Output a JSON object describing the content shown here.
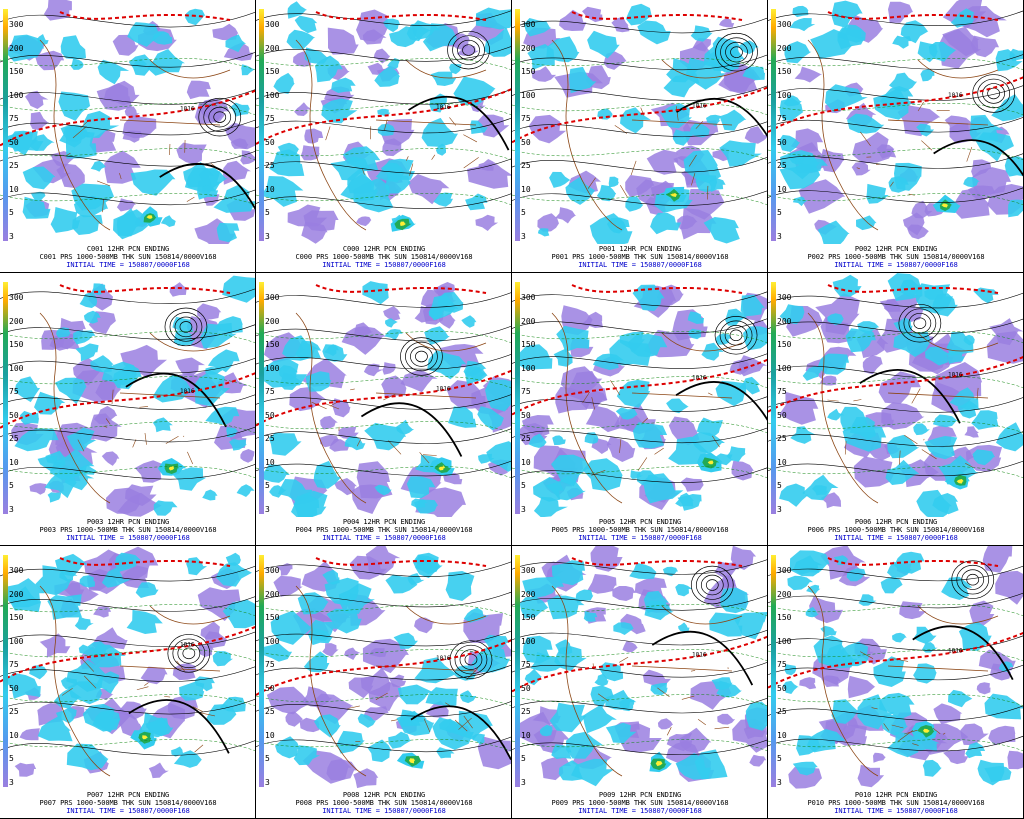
{
  "colors": {
    "precip_light": "#9a7fe0",
    "precip_med": "#33ccee",
    "precip_heavy": "#22aa55",
    "precip_extreme": "#ffee33",
    "isobar": "#000000",
    "thickness": "#dd0000",
    "height": "#118811",
    "coast": "#8b4513",
    "caption_blue": "#0000cc"
  },
  "scale_labels": [
    "300",
    "200",
    "150",
    "100",
    "75",
    "50",
    "25",
    "10",
    "5",
    "3"
  ],
  "panels": [
    {
      "id": "C001",
      "title": "C001 12HR PCN ENDING",
      "line": "C001 PRS 1000-500MB THK SUN 150814/0000V168",
      "init": "INITIAL TIME = 150807/0000F168"
    },
    {
      "id": "C000",
      "title": "C000 12HR PCN ENDING",
      "line": "C000 PRS 1000-500MB THK SUN 150814/0000V168",
      "init": "INITIAL TIME = 150807/0000F168"
    },
    {
      "id": "P001",
      "title": "P001 12HR PCN ENDING",
      "line": "P001 PRS 1000-500MB THK SUN 150814/0000V168",
      "init": "INITIAL TIME = 150807/0000F168"
    },
    {
      "id": "P002",
      "title": "P002 12HR PCN ENDING",
      "line": "P002 PRS 1000-500MB THK SUN 150814/0000V168",
      "init": "INITIAL TIME = 150807/0000F168"
    },
    {
      "id": "P003",
      "title": "P003 12HR PCN ENDING",
      "line": "P003 PRS 1000-500MB THK SUN 150814/0000V168",
      "init": "INITIAL TIME = 150807/0000F168"
    },
    {
      "id": "P004",
      "title": "P004 12HR PCN ENDING",
      "line": "P004 PRS 1000-500MB THK SUN 150814/0000V168",
      "init": "INITIAL TIME = 150807/0000F168"
    },
    {
      "id": "P005",
      "title": "P005 12HR PCN ENDING",
      "line": "P005 PRS 1000-500MB THK SUN 150814/0000V168",
      "init": "INITIAL TIME = 150807/0000F168"
    },
    {
      "id": "P006",
      "title": "P006 12HR PCN ENDING",
      "line": "P006 PRS 1000-500MB THK SUN 150814/0000V168",
      "init": "INITIAL TIME = 150807/0000F168"
    },
    {
      "id": "P007",
      "title": "P007 12HR PCN ENDING",
      "line": "P007 PRS 1000-500MB THK SUN 150814/0000V168",
      "init": "INITIAL TIME = 150807/0000F168"
    },
    {
      "id": "P008",
      "title": "P008 12HR PCN ENDING",
      "line": "P008 PRS 1000-500MB THK SUN 150814/0000V168",
      "init": "INITIAL TIME = 150807/0000F168"
    },
    {
      "id": "P009",
      "title": "P009 12HR PCN ENDING",
      "line": "P009 PRS 1000-500MB THK SUN 150814/0000V168",
      "init": "INITIAL TIME = 150807/0000F168"
    },
    {
      "id": "P010",
      "title": "P010 12HR PCN ENDING",
      "line": "P010 PRS 1000-500MB THK SUN 150814/0000V168",
      "init": "INITIAL TIME = 150807/0000F168"
    }
  ],
  "contour_label": "1016"
}
